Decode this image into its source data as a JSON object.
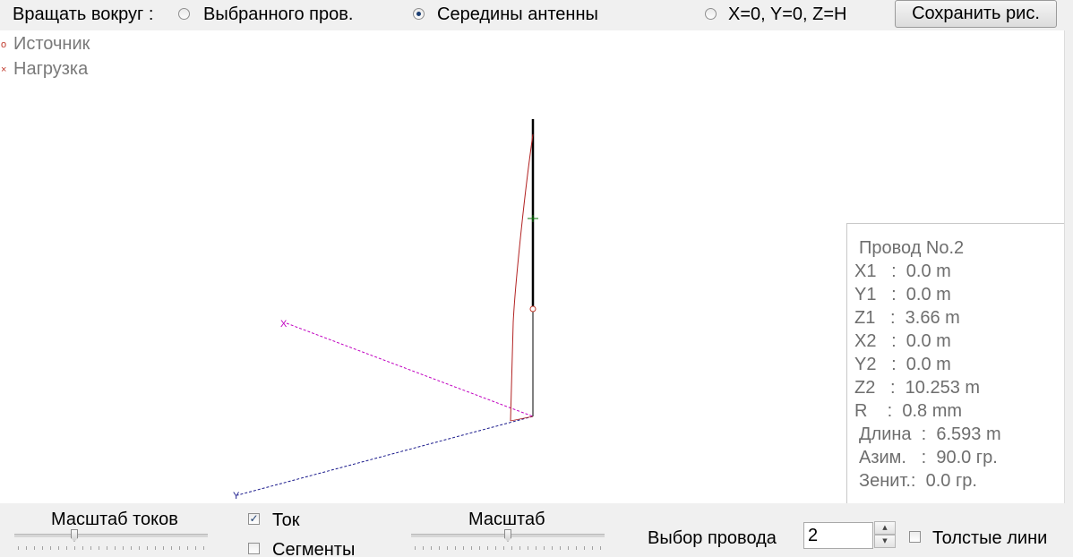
{
  "toolbar": {
    "rotate_label": "Вращать вокруг :",
    "options": [
      {
        "label": "Выбранного пров.",
        "checked": false
      },
      {
        "label": "Середины антенны",
        "checked": true
      },
      {
        "label": "X=0, Y=0, Z=H",
        "checked": false
      }
    ],
    "save_label": "Сохранить рис."
  },
  "legend": {
    "source_label": "Источник",
    "load_label": "Нагрузка",
    "source_mark": "o",
    "load_mark": "×"
  },
  "axes": {
    "x_label": "X",
    "y_label": "Y"
  },
  "colors": {
    "wire": "#000000",
    "current": "#b22222",
    "x_axis": "#c000c0",
    "y_axis": "#1a1a8c",
    "segment_mark": "#0a7a0a",
    "source": "#c0392b"
  },
  "info": {
    "title": "Провод No.2",
    "x1": "X1   :  0.0 m",
    "y1": "Y1   :  0.0 m",
    "z1": "Z1   :  3.66 m",
    "x2": "X2   :  0.0 m",
    "y2": "Y2   :  0.0 m",
    "z2": "Z2   :  10.253 m",
    "r": "R    :  0.8 mm",
    "length": "Длина  :  6.593 m",
    "azimuth": "Азим.   :  90.0 гр.",
    "zenith": "Зенит.:  0.0 гр."
  },
  "bottom": {
    "current_scale_label": "Масштаб токов",
    "current_label": "Ток",
    "current_checked": true,
    "segments_label": "Сегменты",
    "segments_checked": false,
    "scale_label": "Масштаб",
    "wire_select_label": "Выбор провода",
    "wire_select_value": "2",
    "thick_lines_label": "Толстые лини",
    "thick_lines_checked": false
  }
}
